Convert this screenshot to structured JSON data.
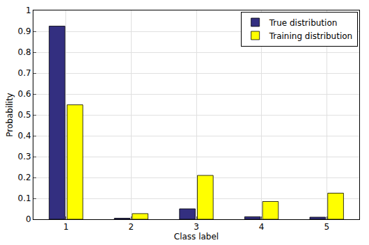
{
  "chart_data": {
    "type": "bar",
    "x_label": "Class label",
    "y_label": "Probability",
    "categories": [
      "1",
      "2",
      "3",
      "4",
      "5"
    ],
    "series": [
      {
        "name": "True distribution",
        "color": "#332f80",
        "values": [
          0.925,
          0.005,
          0.05,
          0.012,
          0.01
        ]
      },
      {
        "name": "Training distribution",
        "color": "#ffff00",
        "values": [
          0.548,
          0.027,
          0.21,
          0.085,
          0.125
        ]
      }
    ],
    "ylim": [
      0,
      1
    ],
    "yticks": [
      0,
      0.1,
      0.2,
      0.3,
      0.4,
      0.5,
      0.6,
      0.7,
      0.8,
      0.9,
      1
    ],
    "grid": true,
    "legend": "top-right"
  }
}
